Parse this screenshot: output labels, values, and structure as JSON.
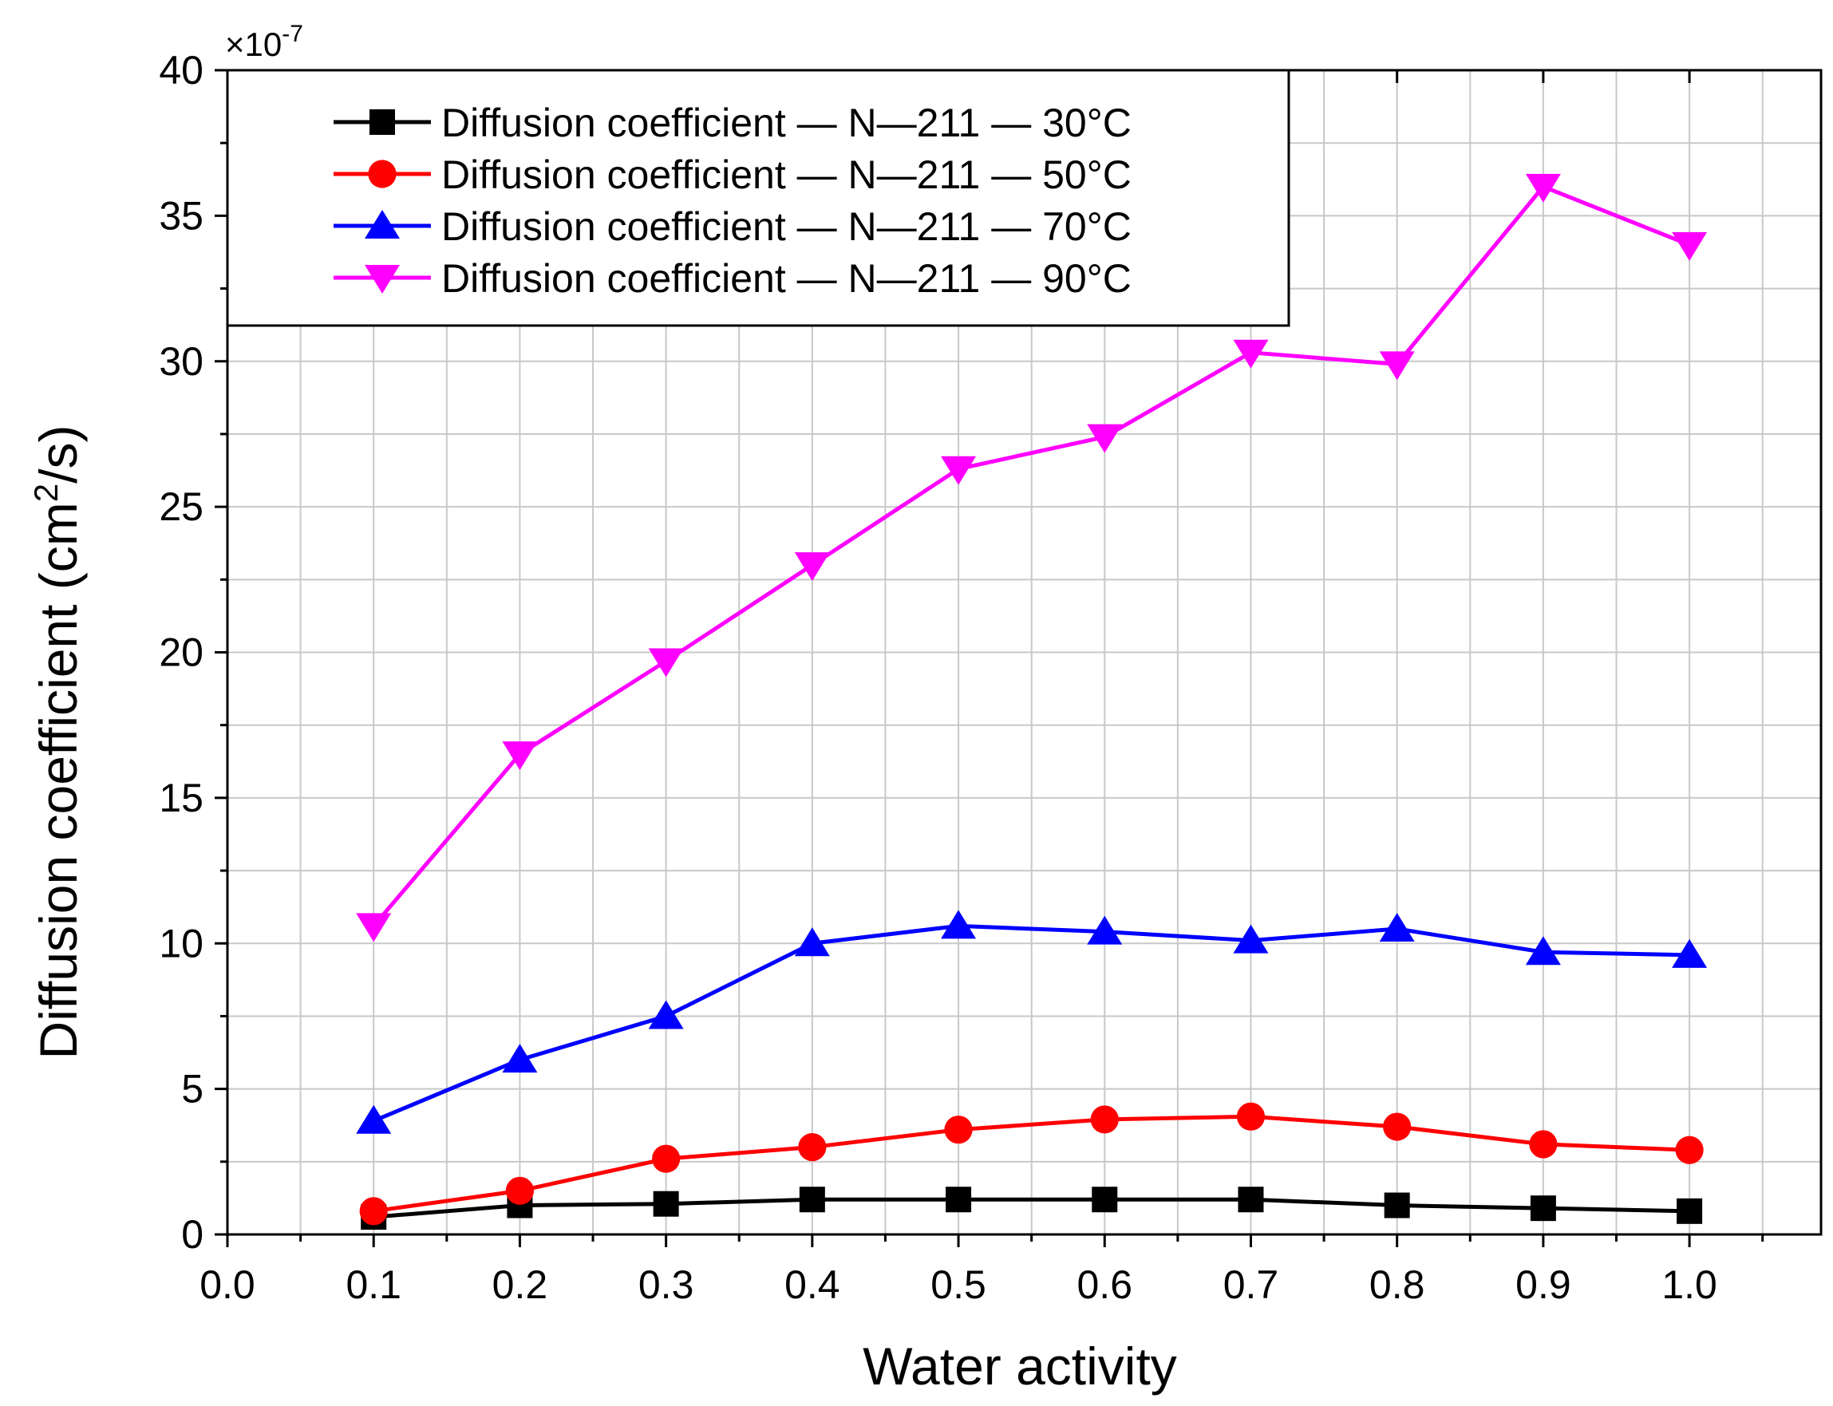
{
  "chart_data": {
    "type": "line",
    "title": "",
    "xlabel": "Water activity",
    "ylabel_main": "Diffusion coefficient (cm",
    "ylabel_sup": "2",
    "ylabel_end": "/s)",
    "multiplier_base": "×10",
    "multiplier_exp": "-7",
    "xlim": [
      0.0,
      1.09
    ],
    "ylim": [
      0,
      40
    ],
    "x_ticks": [
      0.0,
      0.1,
      0.2,
      0.3,
      0.4,
      0.5,
      0.6,
      0.7,
      0.8,
      0.9,
      1.0
    ],
    "x_tick_labels": [
      "0.0",
      "0.1",
      "0.2",
      "0.3",
      "0.4",
      "0.5",
      "0.6",
      "0.7",
      "0.8",
      "0.9",
      "1.0"
    ],
    "y_ticks": [
      0,
      5,
      10,
      15,
      20,
      25,
      30,
      35,
      40
    ],
    "y_tick_labels": [
      "0",
      "5",
      "10",
      "15",
      "20",
      "25",
      "30",
      "35",
      "40"
    ],
    "grid": true,
    "legend_position": "top-left",
    "x": [
      0.1,
      0.2,
      0.3,
      0.4,
      0.5,
      0.6,
      0.7,
      0.8,
      0.9,
      1.0
    ],
    "series": [
      {
        "name": "Diffusion coefficient — N—211 — 30°C",
        "color": "#000000",
        "marker": "square",
        "values": [
          0.6,
          1.0,
          1.05,
          1.2,
          1.2,
          1.2,
          1.2,
          1.0,
          0.9,
          0.8
        ]
      },
      {
        "name": "Diffusion coefficient — N—211 — 50°C",
        "color": "#ff0000",
        "marker": "circle",
        "values": [
          0.8,
          1.5,
          2.6,
          3.0,
          3.6,
          3.95,
          4.05,
          3.7,
          3.1,
          2.9
        ]
      },
      {
        "name": "Diffusion coefficient — N—211 — 70°C",
        "color": "#0000ff",
        "marker": "triangle-up",
        "values": [
          3.9,
          6.0,
          7.5,
          10.0,
          10.6,
          10.4,
          10.1,
          10.5,
          9.7,
          9.6
        ]
      },
      {
        "name": "Diffusion coefficient — N—211 — 90°C",
        "color": "#ff00ff",
        "marker": "triangle-down",
        "values": [
          10.6,
          16.5,
          19.7,
          23.0,
          26.3,
          27.4,
          30.3,
          29.9,
          36.0,
          34.0
        ]
      }
    ]
  }
}
